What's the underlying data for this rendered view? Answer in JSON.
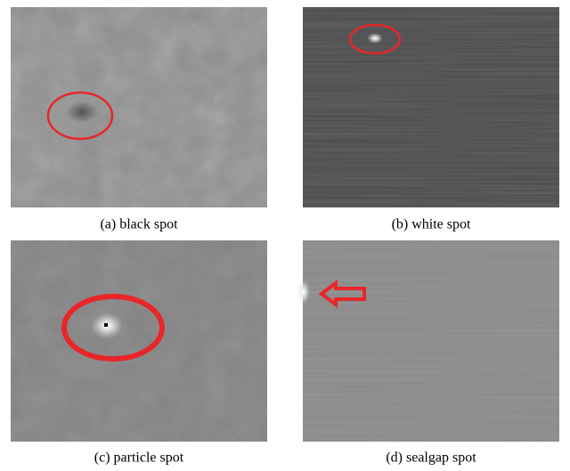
{
  "figure": {
    "panels": [
      {
        "caption": "(a) black spot"
      },
      {
        "caption": "(b) white spot"
      },
      {
        "caption": "(c) particle spot"
      },
      {
        "caption": "(d) sealgap spot"
      }
    ]
  }
}
